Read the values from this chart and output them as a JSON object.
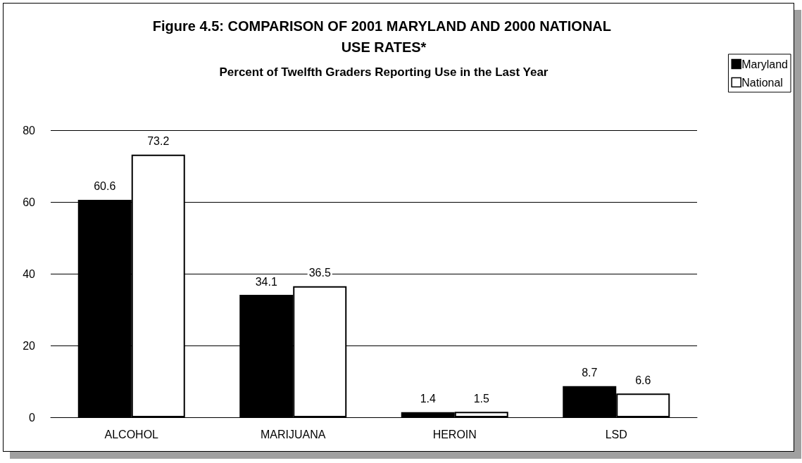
{
  "chart_data": {
    "type": "bar",
    "title": "Figure 4.5: COMPARISON OF 2001 MARYLAND AND 2000 NATIONAL USE RATES*",
    "subtitle": "Percent of Twelfth Graders Reporting Use in the Last Year",
    "categories": [
      "ALCOHOL",
      "MARIJUANA",
      "HEROIN",
      "LSD"
    ],
    "series": [
      {
        "name": "Maryland",
        "color": "#000000",
        "values": [
          60.6,
          34.1,
          1.4,
          8.7
        ]
      },
      {
        "name": "National",
        "color": "#ffffff",
        "values": [
          73.2,
          36.5,
          1.5,
          6.6
        ]
      }
    ],
    "ylim": [
      0,
      80
    ],
    "yticks": [
      0,
      20,
      40,
      60,
      80
    ],
    "grid": "y",
    "legend": "top right",
    "data_labels": true
  }
}
